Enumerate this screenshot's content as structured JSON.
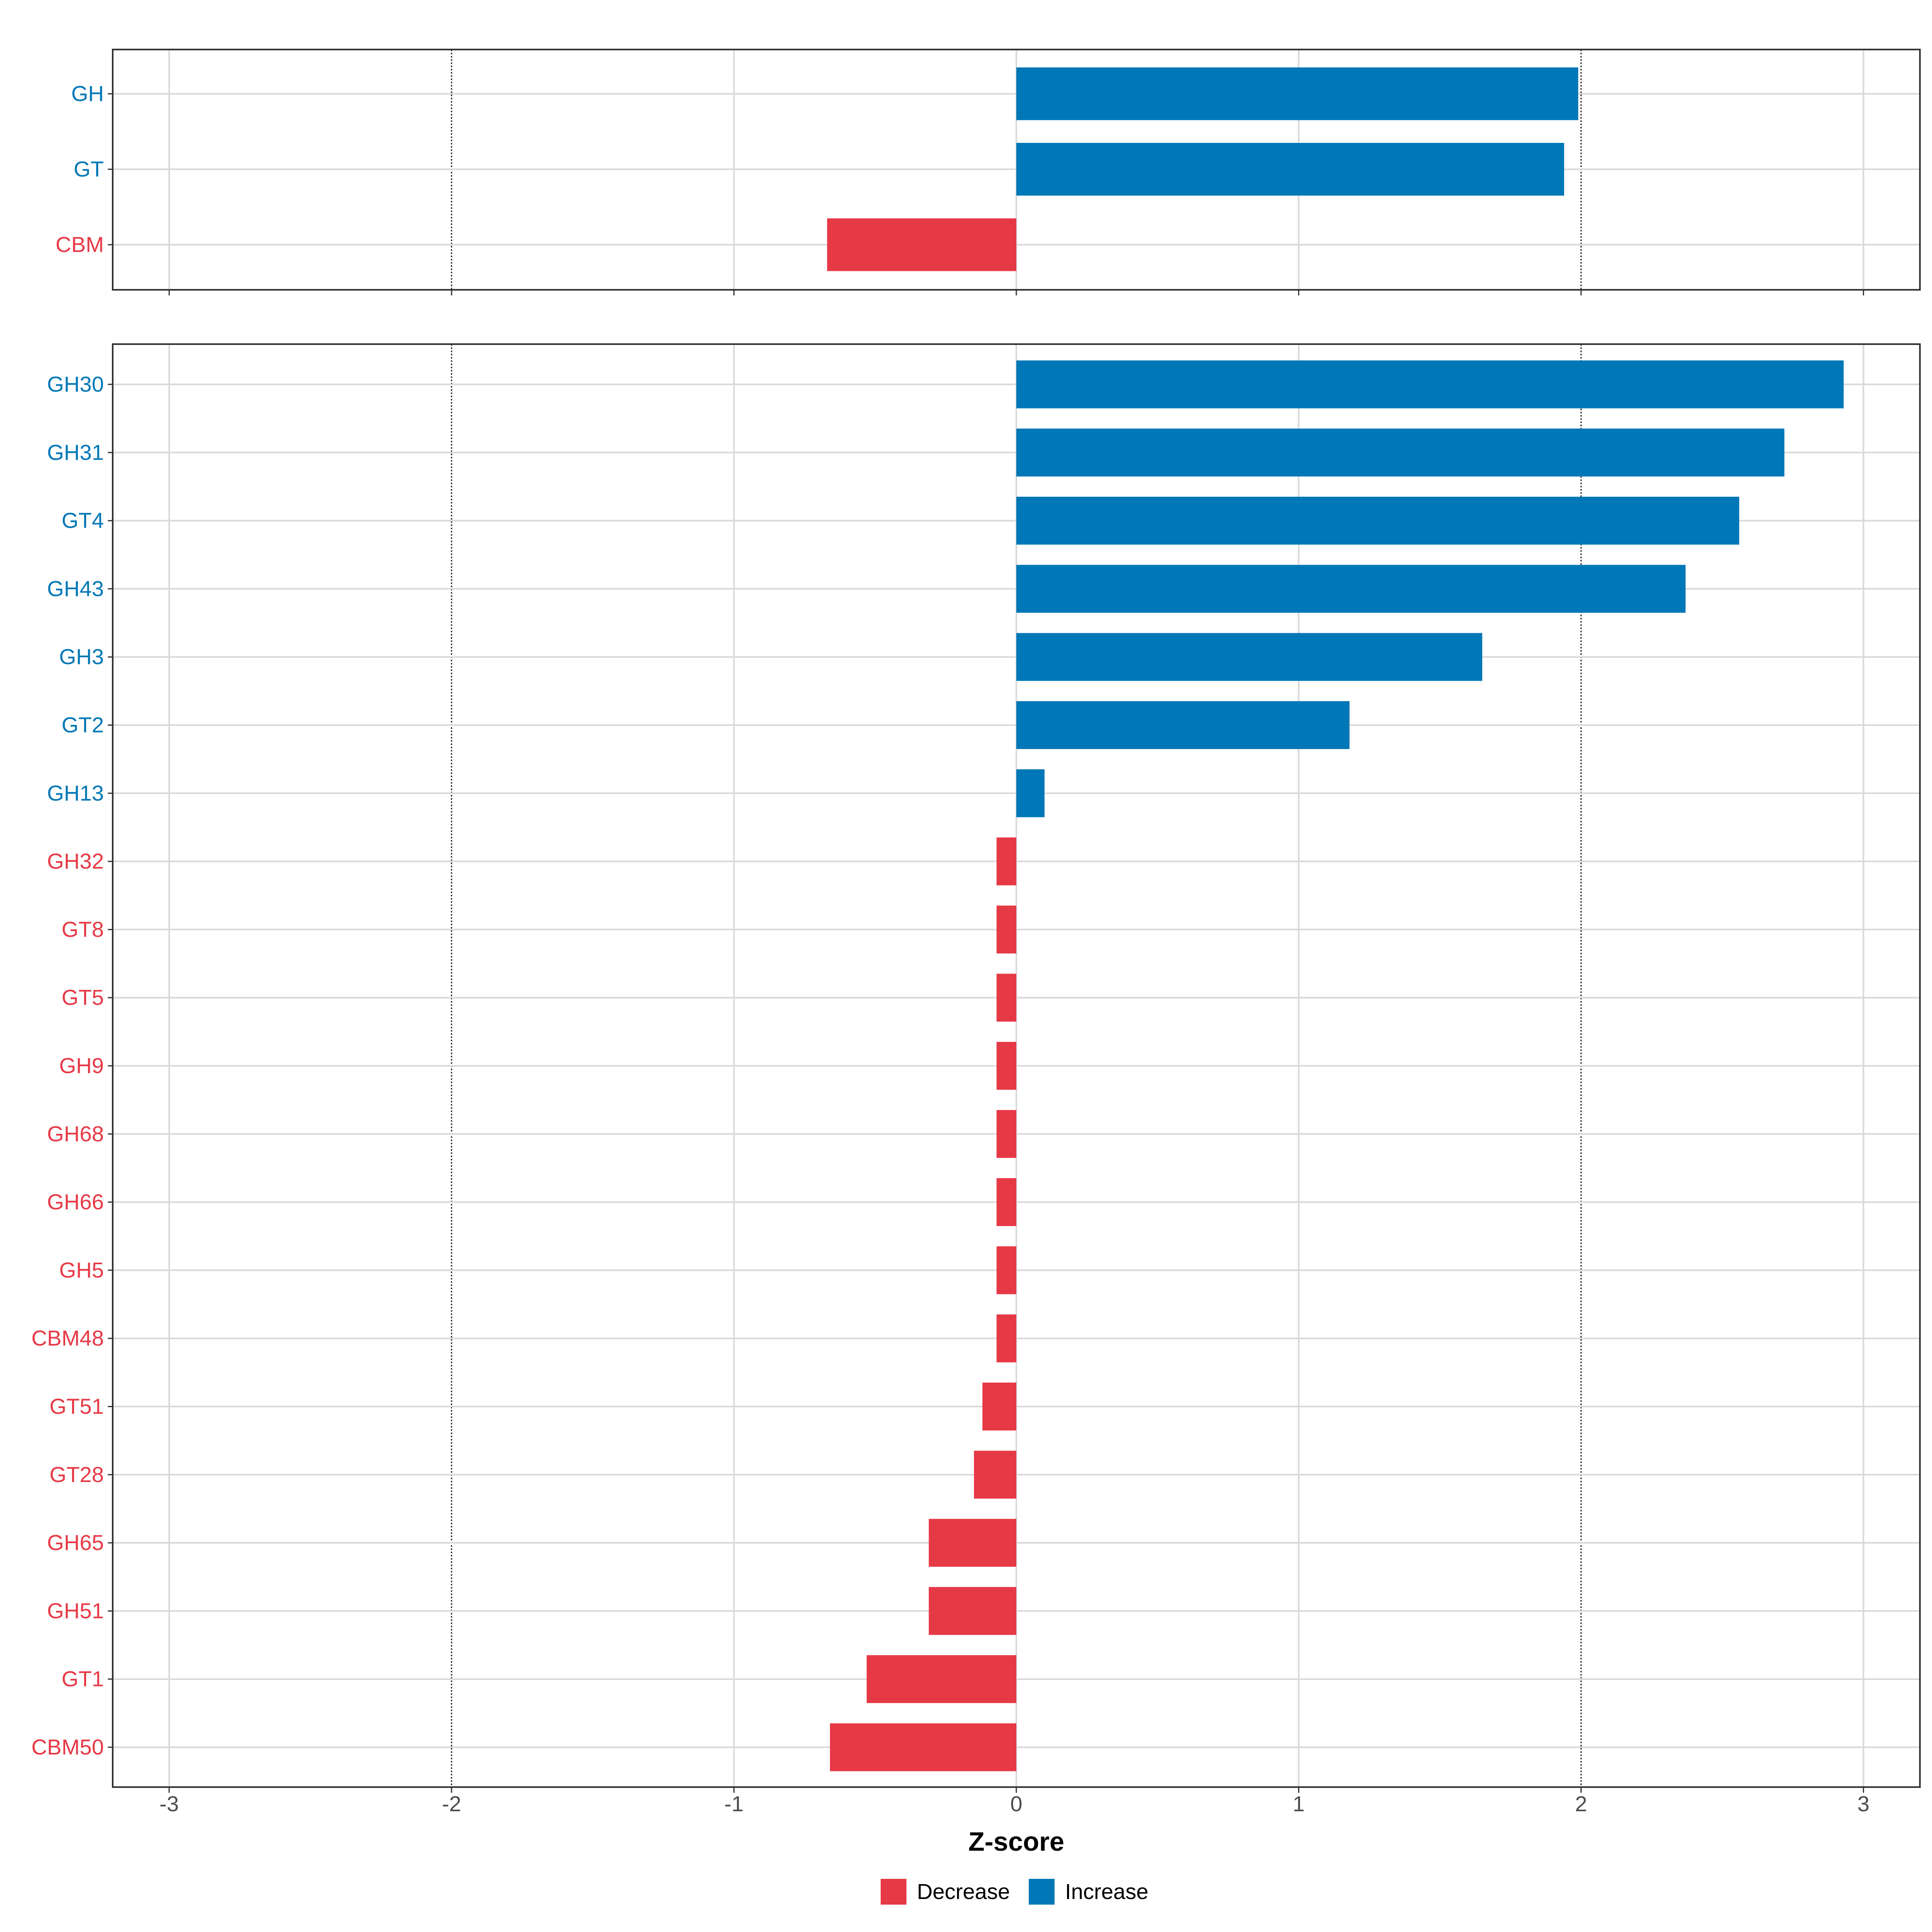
{
  "chart_data": {
    "type": "bar",
    "orientation": "horizontal",
    "xlabel": "Z-score",
    "xlim": [
      -3.2,
      3.2
    ],
    "x_ticks": [
      -3,
      -2,
      -1,
      0,
      1,
      2,
      3
    ],
    "reference_lines": [
      -2,
      2
    ],
    "grid": true,
    "legend_position": "bottom",
    "legend": [
      {
        "label": "Decrease",
        "color": "#E63946"
      },
      {
        "label": "Increase",
        "color": "#0077B6"
      }
    ],
    "panels": [
      {
        "categories": [
          "GH",
          "GT",
          "CBM"
        ],
        "values": [
          1.99,
          1.94,
          -0.67
        ]
      },
      {
        "categories": [
          "GH30",
          "GH31",
          "GT4",
          "GH43",
          "GH3",
          "GT2",
          "GH13",
          "GH32",
          "GT8",
          "GT5",
          "GH9",
          "GH68",
          "GH66",
          "GH5",
          "CBM48",
          "GT51",
          "GT28",
          "GH65",
          "GH51",
          "GT1",
          "CBM50"
        ],
        "values": [
          2.93,
          2.72,
          2.56,
          2.37,
          1.65,
          1.18,
          0.1,
          -0.07,
          -0.07,
          -0.07,
          -0.07,
          -0.07,
          -0.07,
          -0.07,
          -0.07,
          -0.12,
          -0.15,
          -0.31,
          -0.31,
          -0.53,
          -0.66
        ]
      }
    ]
  }
}
